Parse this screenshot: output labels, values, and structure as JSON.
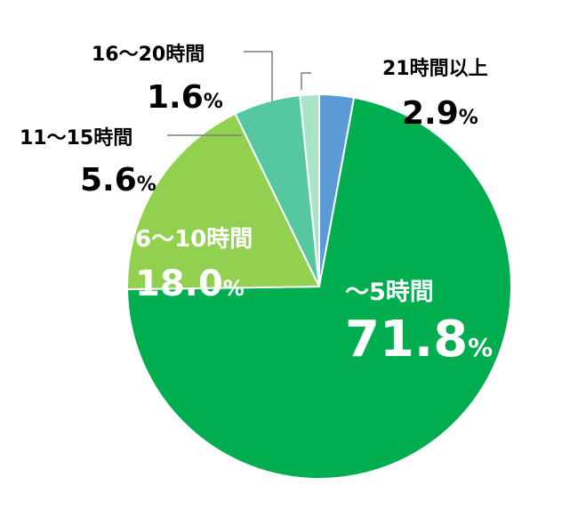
{
  "chart_data": {
    "type": "pie",
    "categories": [
      "～5時間",
      "6～10時間",
      "11～15時間",
      "16～20時間",
      "21時間以上"
    ],
    "values": [
      71.8,
      18.0,
      5.6,
      1.6,
      2.9
    ],
    "value_labels": [
      "71.8",
      "18.0",
      "5.6",
      "1.6",
      "2.9"
    ],
    "unit": "%",
    "colors": [
      "#00ad4f",
      "#92d050",
      "#56c8a0",
      "#a9e4c8",
      "#5b9bd5"
    ],
    "start_angle": "12 o'clock",
    "direction": "clockwise, starting with 21時間以上 then ～5時間",
    "legend": "none"
  }
}
